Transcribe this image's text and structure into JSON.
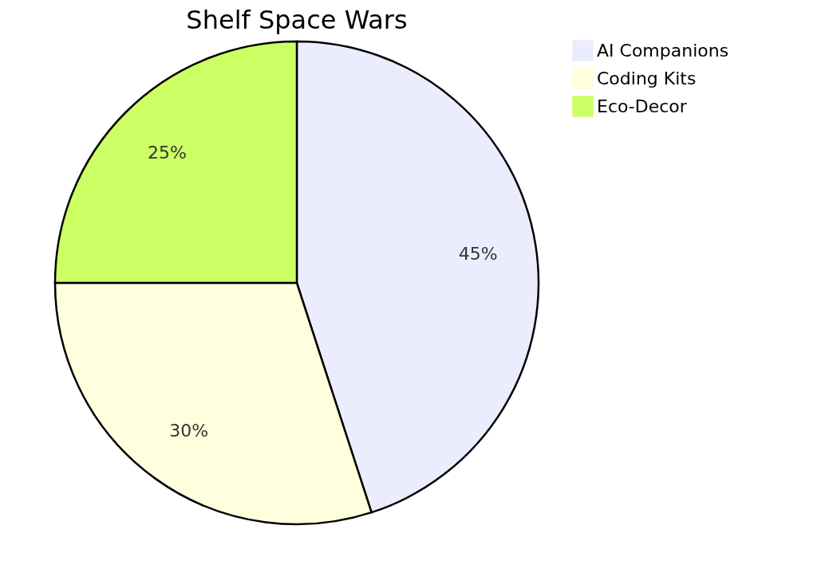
{
  "chart_data": {
    "type": "pie",
    "title": "Shelf Space Wars",
    "categories": [
      "AI Companions",
      "Coding Kits",
      "Eco-Decor"
    ],
    "values": [
      45,
      30,
      25
    ],
    "colors": [
      "#ececff",
      "#ffffde",
      "#cbff63"
    ],
    "value_labels": [
      "45%",
      "30%",
      "25%"
    ],
    "legend": "right"
  }
}
